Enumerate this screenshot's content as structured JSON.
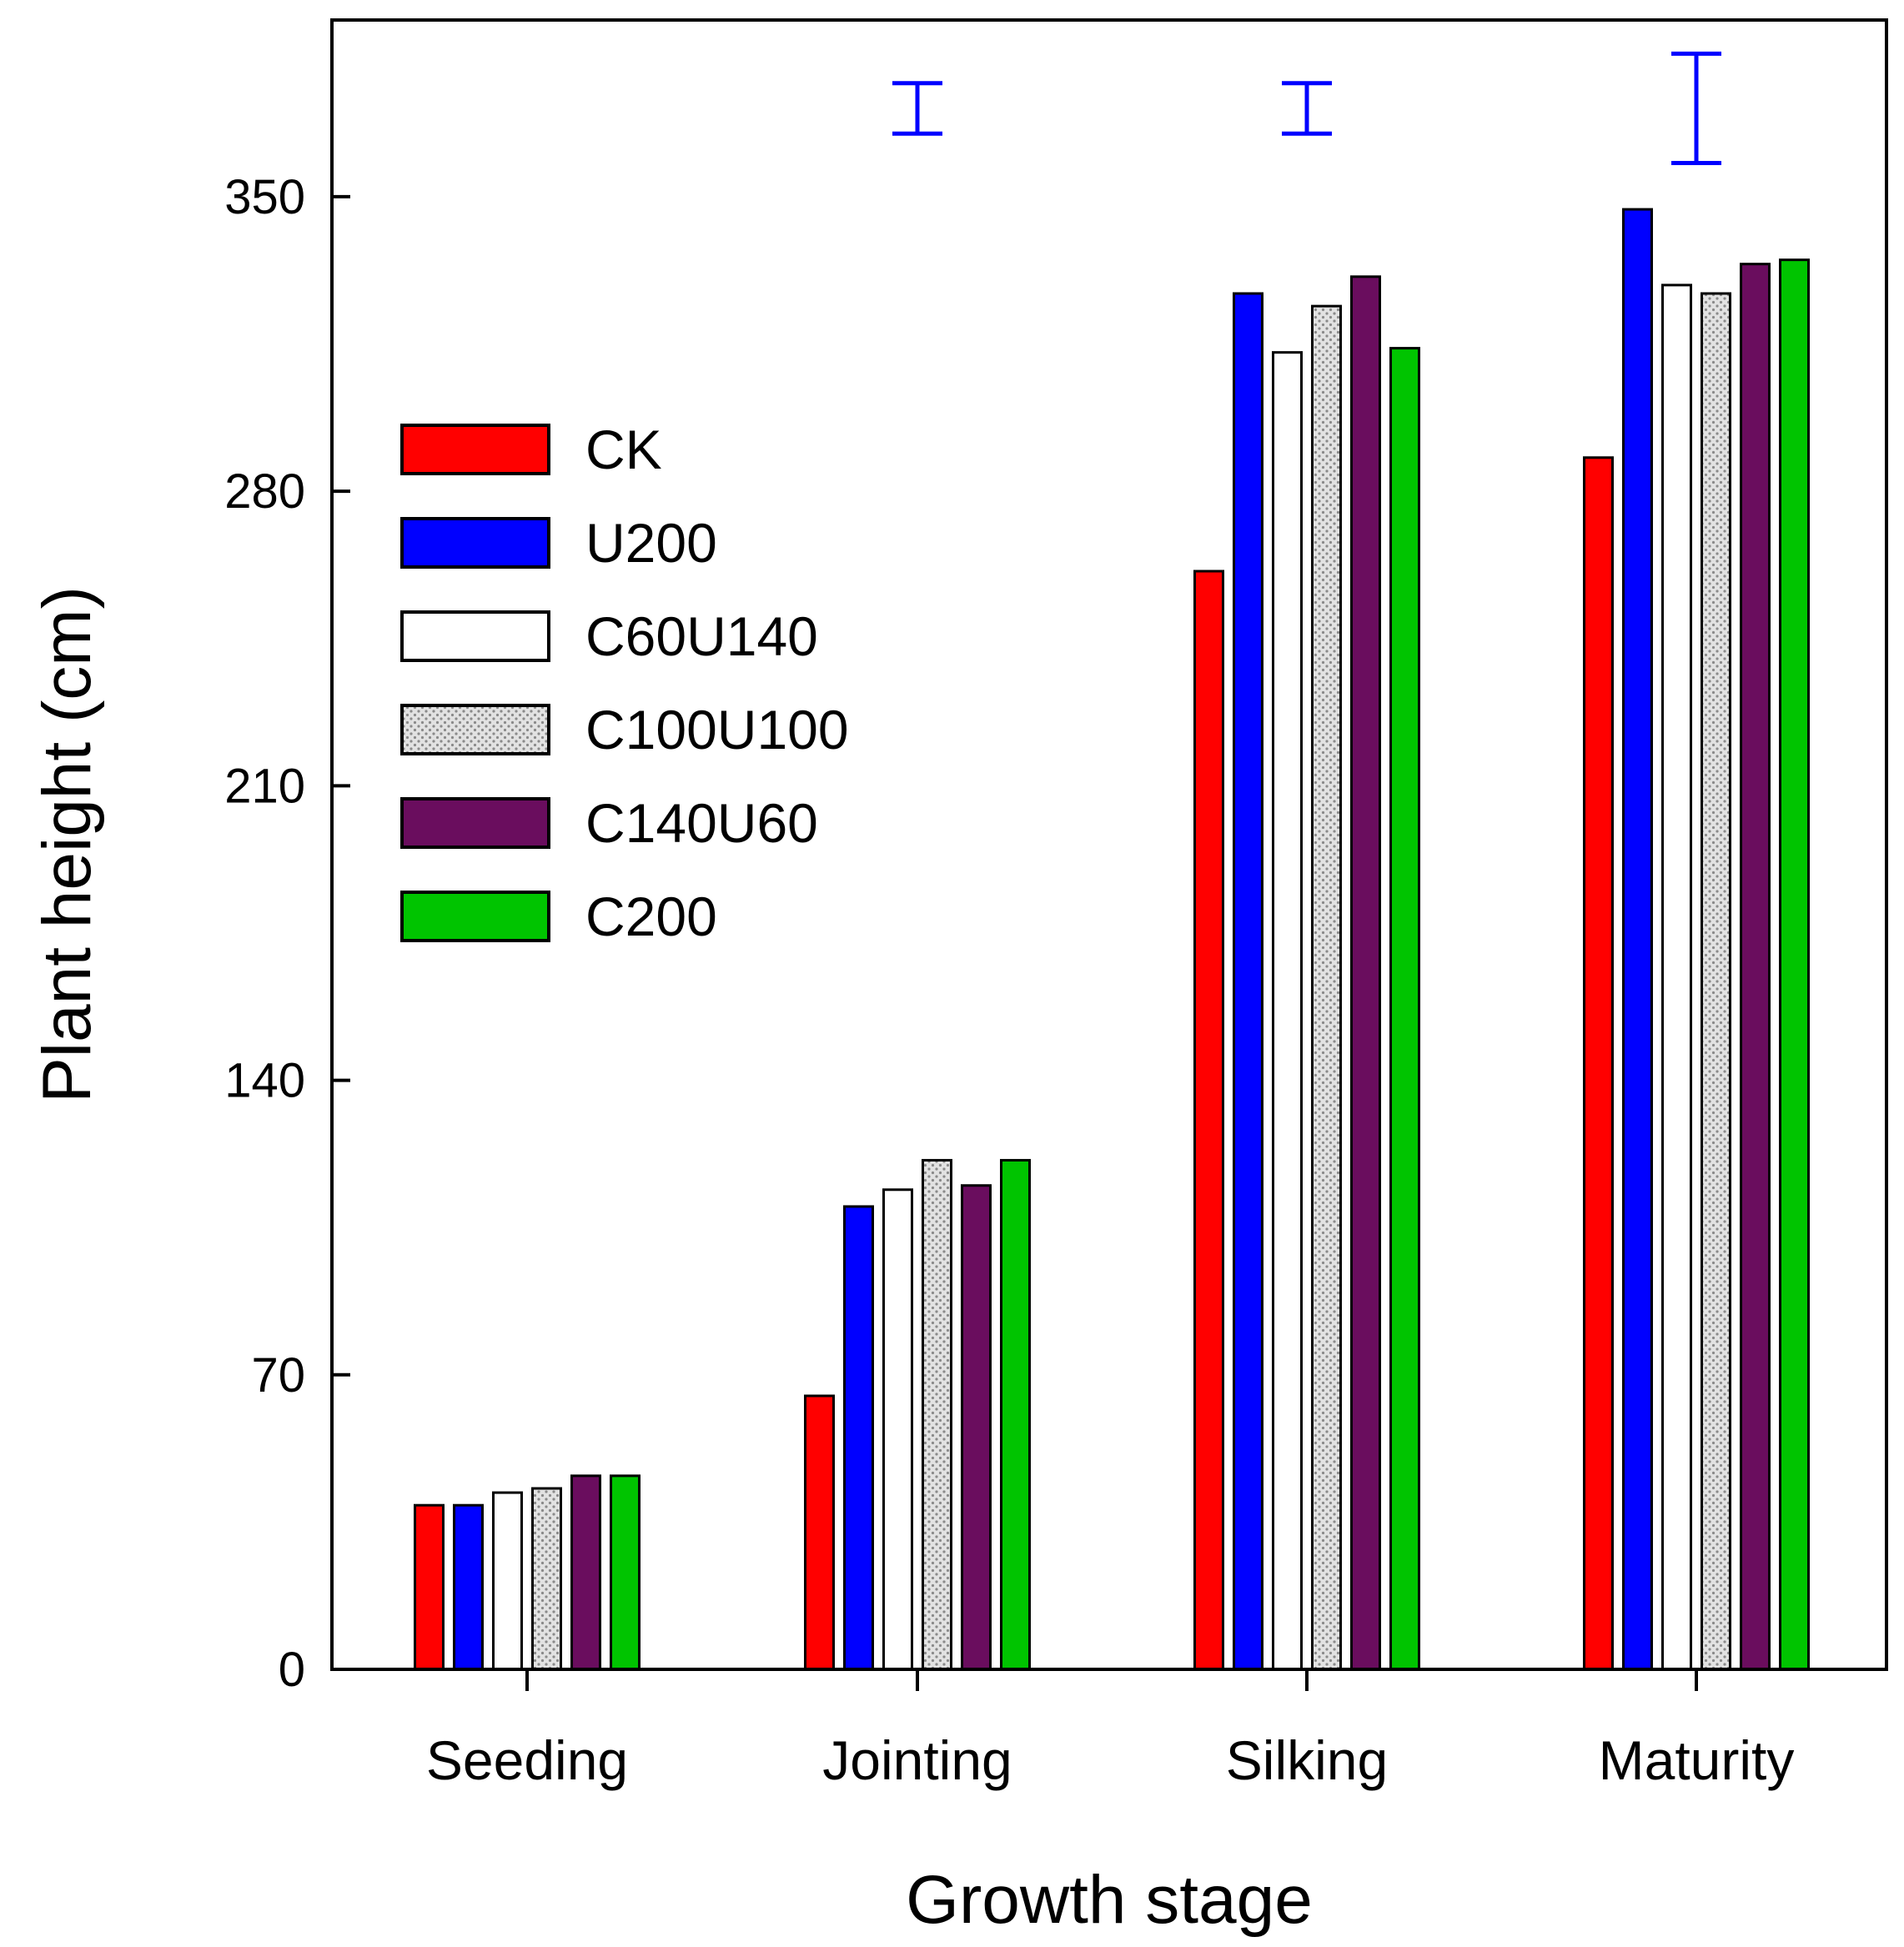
{
  "chart_data": {
    "type": "bar",
    "title": "",
    "xlabel": "Growth stage",
    "ylabel": "Plant height (cm)",
    "ylim": [
      0,
      392
    ],
    "yticks": [
      0,
      70,
      140,
      210,
      280,
      350
    ],
    "grid": false,
    "legend_position": "upper-left",
    "categories": [
      "Seeding",
      "Jointing",
      "Silking",
      "Maturity"
    ],
    "series": [
      {
        "name": "CK",
        "color": "#ff0000",
        "pattern": "solid",
        "values": [
          39,
          65,
          261,
          288
        ]
      },
      {
        "name": "U200",
        "color": "#0000ff",
        "pattern": "solid",
        "values": [
          39,
          110,
          327,
          347
        ]
      },
      {
        "name": "C60U140",
        "color": "#ffffff",
        "pattern": "solid",
        "values": [
          42,
          114,
          313,
          329
        ]
      },
      {
        "name": "C100U100",
        "color": "#dcdcdc",
        "pattern": "dotted",
        "values": [
          43,
          121,
          324,
          327
        ]
      },
      {
        "name": "C140U60",
        "color": "#6a0d5e",
        "pattern": "solid",
        "values": [
          46,
          115,
          331,
          334
        ]
      },
      {
        "name": "C200",
        "color": "#00c400",
        "pattern": "solid",
        "values": [
          46,
          121,
          314,
          335
        ]
      }
    ],
    "error_bars": {
      "color": "#0000ff",
      "items": [
        {
          "category": "Jointing",
          "low": 365,
          "high": 377
        },
        {
          "category": "Silking",
          "low": 365,
          "high": 377
        },
        {
          "category": "Maturity",
          "low": 358,
          "high": 384
        }
      ]
    }
  }
}
